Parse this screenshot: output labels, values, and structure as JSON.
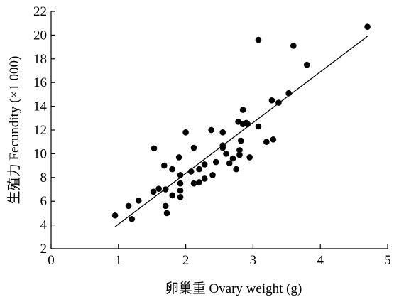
{
  "chart_data": {
    "type": "scatter",
    "title": "",
    "xlabel": "卵巢重 Ovary weight (g)",
    "ylabel": "生殖力 Fecundity (×1 000)",
    "xlim": [
      0,
      5
    ],
    "ylim": [
      2,
      22
    ],
    "x_ticks": [
      0,
      1,
      2,
      3,
      4,
      5
    ],
    "y_ticks": [
      2,
      4,
      6,
      8,
      10,
      12,
      14,
      16,
      18,
      20,
      22
    ],
    "x_tick_labels": [
      "0",
      "1",
      "2",
      "3",
      "4",
      "5"
    ],
    "y_tick_labels": [
      "2",
      "4",
      "6",
      "8",
      "10",
      "12",
      "14",
      "16",
      "18",
      "20",
      "22"
    ],
    "grid": false,
    "legend": "none",
    "trendline": {
      "type": "linear",
      "points": [
        [
          0.95,
          3.85
        ],
        [
          4.7,
          19.9
        ]
      ]
    },
    "points": [
      [
        0.95,
        4.8
      ],
      [
        1.15,
        5.6
      ],
      [
        1.2,
        4.5
      ],
      [
        1.3,
        6.05
      ],
      [
        1.53,
        10.45
      ],
      [
        1.52,
        6.8
      ],
      [
        1.6,
        7.05
      ],
      [
        1.68,
        9.0
      ],
      [
        1.7,
        7.0
      ],
      [
        1.7,
        5.6
      ],
      [
        1.72,
        5.0
      ],
      [
        1.8,
        6.5
      ],
      [
        1.8,
        8.7
      ],
      [
        1.9,
        9.7
      ],
      [
        1.92,
        8.2
      ],
      [
        1.92,
        7.5
      ],
      [
        1.92,
        6.9
      ],
      [
        1.92,
        6.35
      ],
      [
        2.0,
        11.8
      ],
      [
        2.08,
        8.5
      ],
      [
        2.12,
        10.5
      ],
      [
        2.12,
        7.5
      ],
      [
        2.2,
        8.7
      ],
      [
        2.2,
        7.6
      ],
      [
        2.28,
        7.9
      ],
      [
        2.28,
        9.1
      ],
      [
        2.38,
        12.0
      ],
      [
        2.4,
        8.2
      ],
      [
        2.45,
        9.3
      ],
      [
        2.55,
        10.5
      ],
      [
        2.55,
        10.7
      ],
      [
        2.55,
        11.8
      ],
      [
        2.6,
        10.0
      ],
      [
        2.65,
        9.2
      ],
      [
        2.7,
        9.6
      ],
      [
        2.75,
        8.7
      ],
      [
        2.78,
        12.7
      ],
      [
        2.8,
        9.9
      ],
      [
        2.8,
        10.3
      ],
      [
        2.82,
        11.1
      ],
      [
        2.85,
        13.7
      ],
      [
        2.85,
        12.5
      ],
      [
        2.9,
        12.6
      ],
      [
        2.92,
        12.5
      ],
      [
        2.95,
        9.7
      ],
      [
        3.08,
        12.3
      ],
      [
        3.08,
        19.6
      ],
      [
        3.2,
        11.0
      ],
      [
        3.28,
        14.5
      ],
      [
        3.3,
        11.2
      ],
      [
        3.38,
        14.3
      ],
      [
        3.53,
        15.1
      ],
      [
        3.6,
        19.1
      ],
      [
        3.8,
        17.5
      ],
      [
        4.7,
        20.7
      ]
    ]
  }
}
